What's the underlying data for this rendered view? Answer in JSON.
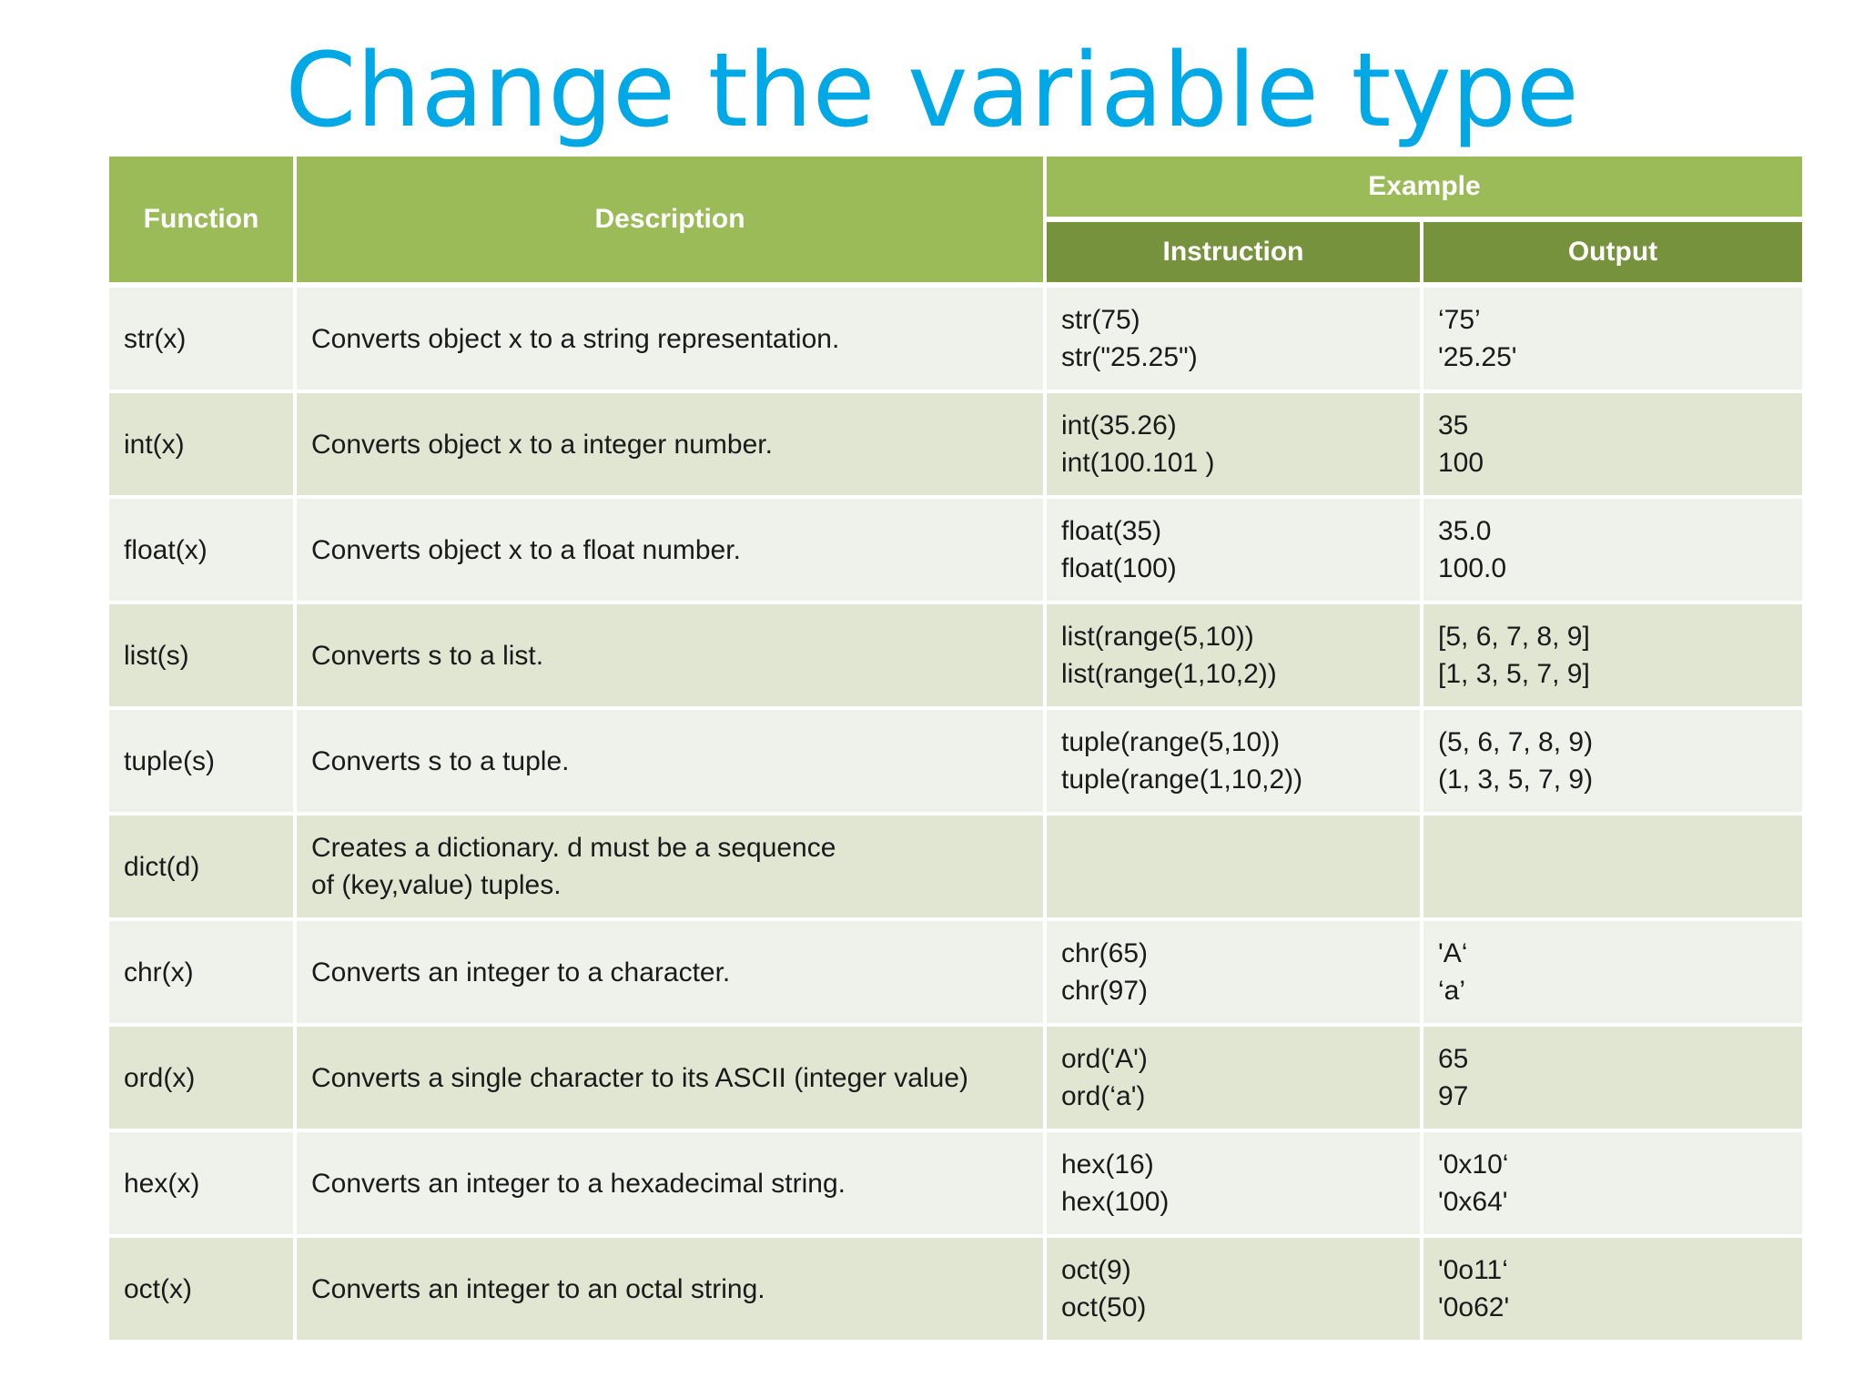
{
  "title": "Change the variable type",
  "table": {
    "headers": {
      "function": "Function",
      "description": "Description",
      "example": "Example",
      "instruction": "Instruction",
      "output": "Output"
    },
    "rows": [
      {
        "function": "str(x)",
        "description": [
          "Converts object x to a string representation."
        ],
        "instruction": [
          "str(75)",
          "str(\"25.25\")"
        ],
        "output": [
          "‘75’",
          "'25.25'"
        ]
      },
      {
        "function": "int(x)",
        "description": [
          "Converts object x to a integer number."
        ],
        "instruction": [
          "int(35.26)",
          "int(100.101 )"
        ],
        "output": [
          "35",
          "100"
        ]
      },
      {
        "function": "float(x)",
        "description": [
          "Converts object x to a float number."
        ],
        "instruction": [
          "float(35)",
          "float(100)"
        ],
        "output": [
          "35.0",
          "100.0"
        ]
      },
      {
        "function": "list(s)",
        "description": [
          "Converts s to a list."
        ],
        "instruction": [
          "list(range(5,10))",
          "list(range(1,10,2))"
        ],
        "output": [
          "[5, 6, 7, 8, 9]",
          "[1, 3, 5, 7, 9]"
        ]
      },
      {
        "function": "tuple(s)",
        "description": [
          "Converts s to a tuple."
        ],
        "instruction": [
          "tuple(range(5,10))",
          "tuple(range(1,10,2))"
        ],
        "output": [
          "(5, 6, 7, 8, 9)",
          "(1, 3, 5, 7, 9)"
        ]
      },
      {
        "function": "dict(d)",
        "description": [
          "Creates a dictionary. d must be a sequence",
          "of  (key,value) tuples."
        ],
        "instruction": [],
        "output": []
      },
      {
        "function": "chr(x)",
        "description": [
          "Converts an integer to a character."
        ],
        "instruction": [
          "chr(65)",
          "chr(97)"
        ],
        "output": [
          "'A‘",
          "‘a’"
        ]
      },
      {
        "function": "ord(x)",
        "description": [
          "Converts a single character to its ASCII (integer value)"
        ],
        "instruction": [
          "ord('A')",
          "ord(‘a')"
        ],
        "output": [
          "65",
          "97"
        ]
      },
      {
        "function": "hex(x)",
        "description": [
          "Converts an integer to a hexadecimal string."
        ],
        "instruction": [
          "hex(16)",
          "hex(100)"
        ],
        "output": [
          "'0x10‘",
          "'0x64'"
        ]
      },
      {
        "function": "oct(x)",
        "description": [
          "Converts an integer to an octal string."
        ],
        "instruction": [
          "oct(9)",
          "oct(50)"
        ],
        "output": [
          "'0o11‘",
          "'0o62'"
        ]
      }
    ]
  },
  "colors": {
    "title": "#00a8e6",
    "header_light": "#9bbb59",
    "header_dark": "#76923c",
    "row_light": "#eff2ea",
    "row_dark": "#e0e6d2"
  }
}
